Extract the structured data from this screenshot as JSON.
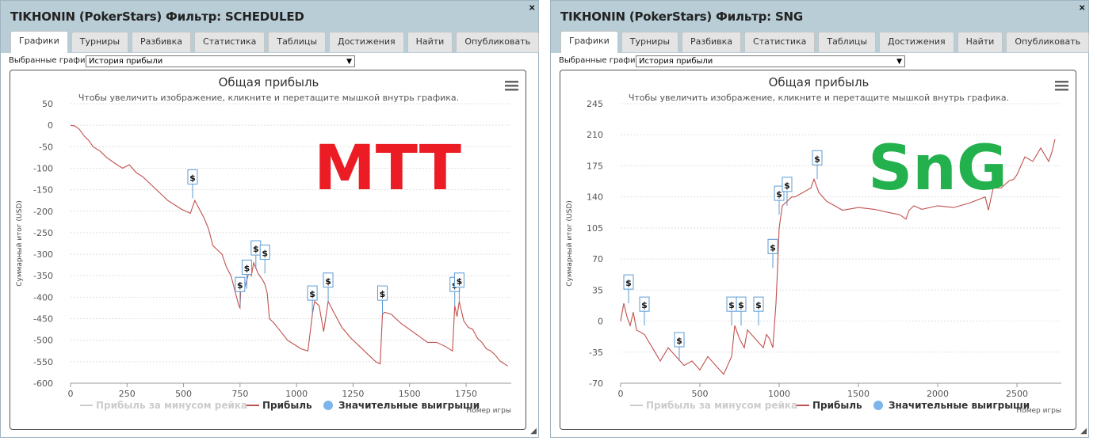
{
  "windows": [
    {
      "title": "TIKHONIN (PokerStars) Фильтр: SCHEDULED",
      "close": "×",
      "tabs": [
        "Графики",
        "Турниры",
        "Разбивка",
        "Статистика",
        "Таблицы лидеров",
        "Достижения",
        "Найти",
        "Опубликовать"
      ],
      "active_tab": "Графики",
      "select_label": "Выбранные графики:",
      "select_value": "История прибыли",
      "overlay_label": "MTT",
      "overlay_color": "#ec1c24",
      "chart_data": {
        "type": "line",
        "title": "Общая прибыль",
        "subtitle": "Чтобы увеличить изображение, кликните и перетащите мышкой внутрь графика.",
        "ylabel": "Суммарный итог (USD)",
        "xlabel": "Номер игры",
        "xlim": [
          0,
          1950
        ],
        "ylim": [
          -600,
          50
        ],
        "x_ticks": [
          0,
          250,
          500,
          750,
          1000,
          1250,
          1500,
          1750
        ],
        "y_ticks": [
          50,
          0,
          -50,
          -100,
          -150,
          -200,
          -250,
          -300,
          -350,
          -400,
          -450,
          -500,
          -550,
          -600
        ],
        "grid": true,
        "legend": [
          "Прибыль за минусом рейка",
          "Прибыль",
          "Значительные выигрыши"
        ],
        "series": [
          {
            "name": "Прибыль",
            "color": "#c0504d",
            "x": [
              0,
              20,
              40,
              60,
              80,
              100,
              130,
              160,
              200,
              230,
              260,
              290,
              320,
              350,
              380,
              400,
              430,
              460,
              490,
              510,
              530,
              550,
              570,
              590,
              610,
              630,
              650,
              670,
              690,
              710,
              730,
              745,
              750,
              755,
              770,
              790,
              800,
              810,
              830,
              850,
              860,
              870,
              880,
              900,
              930,
              960,
              990,
              1020,
              1050,
              1070,
              1080,
              1100,
              1120,
              1140,
              1160,
              1200,
              1240,
              1280,
              1320,
              1350,
              1370,
              1380,
              1390,
              1420,
              1460,
              1500,
              1540,
              1580,
              1620,
              1660,
              1690,
              1700,
              1710,
              1720,
              1740,
              1760,
              1780,
              1800,
              1820,
              1840,
              1860,
              1880,
              1900,
              1920,
              1935
            ],
            "y": [
              0,
              -2,
              -10,
              -25,
              -35,
              -50,
              -60,
              -75,
              -90,
              -100,
              -92,
              -110,
              -120,
              -135,
              -150,
              -160,
              -175,
              -185,
              -195,
              -200,
              -205,
              -175,
              -195,
              -215,
              -240,
              -280,
              -290,
              -300,
              -330,
              -350,
              -390,
              -420,
              -425,
              -360,
              -380,
              -340,
              -350,
              -320,
              -345,
              -360,
              -370,
              -390,
              -450,
              -460,
              -480,
              -500,
              -510,
              -520,
              -525,
              -440,
              -410,
              -420,
              -480,
              -410,
              -430,
              -470,
              -495,
              -515,
              -535,
              -550,
              -555,
              -440,
              -435,
              -440,
              -460,
              -475,
              -490,
              -505,
              -505,
              -515,
              -525,
              -420,
              -445,
              -410,
              -455,
              -470,
              -475,
              -495,
              -505,
              -520,
              -525,
              -535,
              -548,
              -555,
              -560
            ]
          }
        ],
        "markers": [
          {
            "x": 540,
            "y": -170,
            "label": "$"
          },
          {
            "x": 750,
            "y": -420,
            "label": "$"
          },
          {
            "x": 780,
            "y": -380,
            "label": "$"
          },
          {
            "x": 820,
            "y": -335,
            "label": "$"
          },
          {
            "x": 860,
            "y": -345,
            "label": "$"
          },
          {
            "x": 1070,
            "y": -440,
            "label": "$"
          },
          {
            "x": 1140,
            "y": -410,
            "label": "$"
          },
          {
            "x": 1380,
            "y": -440,
            "label": "$"
          },
          {
            "x": 1700,
            "y": -420,
            "label": "$"
          },
          {
            "x": 1720,
            "y": -410,
            "label": "$"
          }
        ]
      }
    },
    {
      "title": "TIKHONIN (PokerStars) Фильтр: SNG",
      "close": "×",
      "tabs": [
        "Графики",
        "Турниры",
        "Разбивка",
        "Статистика",
        "Таблицы лидеров",
        "Достижения",
        "Найти",
        "Опубликовать"
      ],
      "active_tab": "Графики",
      "select_label": "Выбранные графики:",
      "select_value": "История прибыли",
      "overlay_label": "SnG",
      "overlay_color": "#22b14c",
      "chart_data": {
        "type": "line",
        "title": "Общая прибыль",
        "subtitle": "Чтобы увеличить изображение, кликните и перетащите мышкой внутрь графика.",
        "ylabel": "Суммарный итог (USD)",
        "xlabel": "Номер игры",
        "xlim": [
          0,
          2780
        ],
        "ylim": [
          -70,
          245
        ],
        "x_ticks": [
          0,
          500,
          1000,
          1500,
          2000,
          2500
        ],
        "y_ticks": [
          245,
          210,
          175,
          140,
          105,
          70,
          35,
          0,
          -35,
          -70
        ],
        "grid": true,
        "legend": [
          "Прибыль за минусом рейка",
          "Прибыль",
          "Значительные выигрыши"
        ],
        "series": [
          {
            "name": "Прибыль",
            "color": "#c0504d",
            "x": [
              0,
              20,
              40,
              60,
              80,
              100,
              150,
              200,
              250,
              300,
              350,
              400,
              450,
              500,
              550,
              600,
              650,
              700,
              720,
              750,
              780,
              800,
              850,
              900,
              920,
              940,
              960,
              980,
              990,
              1000,
              1020,
              1050,
              1080,
              1100,
              1150,
              1200,
              1220,
              1250,
              1300,
              1350,
              1400,
              1500,
              1600,
              1700,
              1760,
              1800,
              1820,
              1850,
              1900,
              2000,
              2100,
              2200,
              2300,
              2320,
              2350,
              2400,
              2450,
              2480,
              2500,
              2550,
              2600,
              2650,
              2700,
              2720,
              2740
            ],
            "y": [
              0,
              20,
              5,
              -5,
              10,
              -10,
              -15,
              -30,
              -45,
              -30,
              -40,
              -50,
              -45,
              -55,
              -40,
              -50,
              -60,
              -40,
              -5,
              -20,
              -30,
              -10,
              -20,
              -30,
              -15,
              -20,
              -30,
              20,
              60,
              105,
              130,
              135,
              140,
              140,
              145,
              150,
              160,
              145,
              135,
              130,
              125,
              128,
              126,
              122,
              120,
              115,
              125,
              130,
              126,
              130,
              128,
              133,
              140,
              125,
              150,
              150,
              158,
              160,
              165,
              185,
              180,
              195,
              180,
              190,
              205
            ]
          }
        ],
        "markers": [
          {
            "x": 50,
            "y": 20,
            "label": "$"
          },
          {
            "x": 150,
            "y": -5,
            "label": "$"
          },
          {
            "x": 370,
            "y": -45,
            "label": "$"
          },
          {
            "x": 700,
            "y": -5,
            "label": "$"
          },
          {
            "x": 760,
            "y": -5,
            "label": "$"
          },
          {
            "x": 870,
            "y": -5,
            "label": "$"
          },
          {
            "x": 960,
            "y": 60,
            "label": "$"
          },
          {
            "x": 1000,
            "y": 120,
            "label": "$"
          },
          {
            "x": 1050,
            "y": 130,
            "label": "$"
          },
          {
            "x": 1240,
            "y": 160,
            "label": "$"
          }
        ]
      }
    }
  ]
}
